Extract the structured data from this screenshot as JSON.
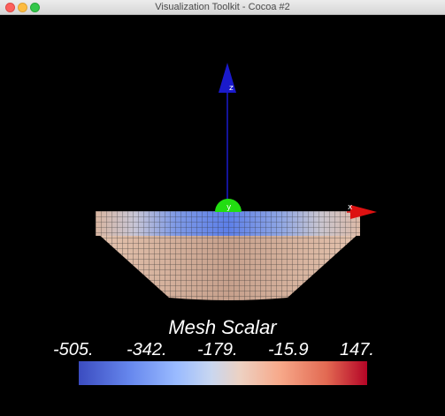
{
  "window": {
    "title": "Visualization Toolkit - Cocoa #2"
  },
  "axes": {
    "z_label": "z",
    "y_label": "y",
    "x_label": "x",
    "z_color": "#1a1acc",
    "y_color": "#22dd11",
    "x_color": "#dd1111"
  },
  "scalar_bar": {
    "title": "Mesh Scalar",
    "tick_labels": [
      "-505.",
      "-342.",
      "-179.",
      "-15.9",
      "147."
    ],
    "range": [
      -505,
      147
    ],
    "colormap": [
      "#3b4cc0",
      "#6788ee",
      "#9abbff",
      "#c9d7f0",
      "#edd1c2",
      "#f7a889",
      "#e26952",
      "#b40426"
    ]
  }
}
